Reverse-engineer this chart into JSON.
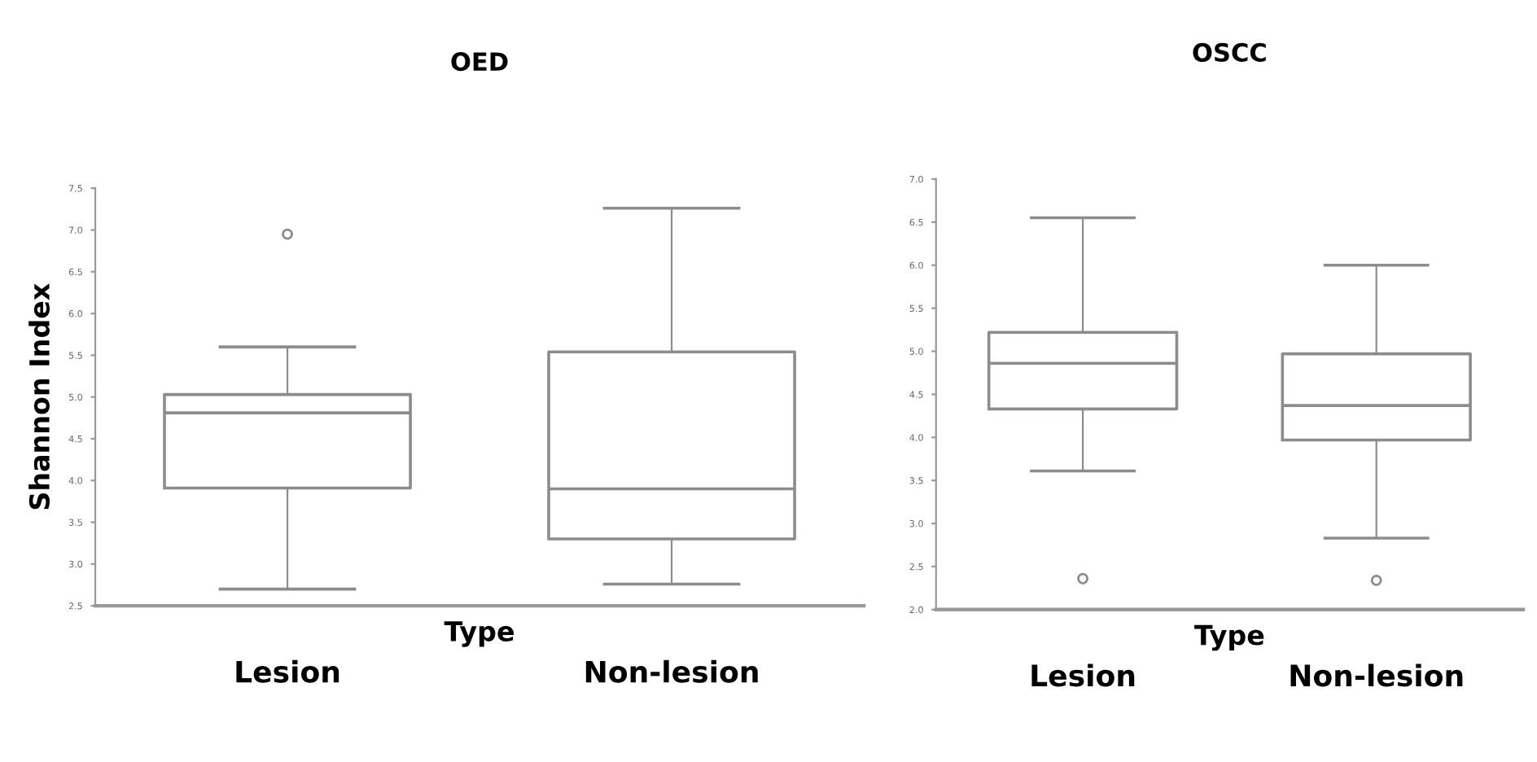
{
  "chart_data": [
    {
      "type": "box",
      "title": "OED",
      "xlabel": "Type",
      "ylabel": "Shannon Index",
      "categories": [
        "Lesion",
        "Non-lesion"
      ],
      "boxes": [
        {
          "low": 2.7,
          "q1": 3.91,
          "median": 4.81,
          "q3": 5.03,
          "high": 5.6,
          "outliers": [
            6.95
          ]
        },
        {
          "low": 2.76,
          "q1": 3.3,
          "median": 3.9,
          "q3": 5.54,
          "high": 7.26
        }
      ],
      "color": "#8c8c8c",
      "ylim": [
        2.5,
        7.5
      ],
      "yticks": [
        2.5,
        {
          "value": 3,
          "label": "3.0"
        },
        3.5,
        {
          "value": 4,
          "label": "4.0"
        },
        4.5,
        {
          "value": 5,
          "label": "5.0"
        },
        5.5,
        {
          "value": 6,
          "label": "6.0"
        },
        6.5,
        {
          "value": 7,
          "label": "7.0"
        },
        7.5
      ],
      "grid": false,
      "legend": false
    },
    {
      "type": "box",
      "title": "OSCC",
      "xlabel": "Type",
      "categories": [
        "Lesion",
        "Non-lesion"
      ],
      "boxes": [
        {
          "low": 3.61,
          "q1": 4.33,
          "median": 4.86,
          "q3": 5.22,
          "high": 6.55,
          "outliers": [
            2.36
          ]
        },
        {
          "low": 2.83,
          "q1": 3.97,
          "median": 4.37,
          "q3": 4.97,
          "high": 6.0,
          "outliers": [
            2.34
          ]
        }
      ],
      "color": "#8c8c8c",
      "ylim": [
        2.0,
        7.0
      ],
      "yticks": [
        {
          "value": 2,
          "label": "2.0"
        },
        2.5,
        {
          "value": 3,
          "label": "3.0"
        },
        3.5,
        {
          "value": 4,
          "label": "4.0"
        },
        4.5,
        {
          "value": 5,
          "label": "5.0"
        },
        5.5,
        {
          "value": 6,
          "label": "6.0"
        },
        6.5,
        {
          "value": 7,
          "label": "7.0"
        }
      ],
      "grid": false,
      "legend": false
    }
  ]
}
